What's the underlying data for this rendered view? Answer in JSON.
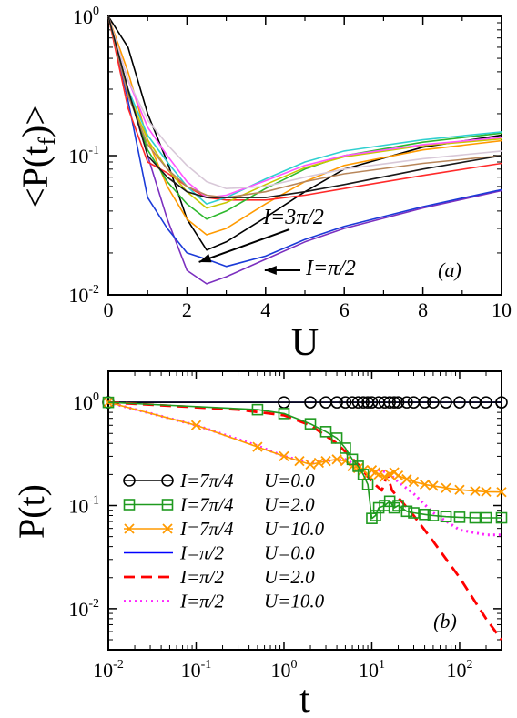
{
  "chart_data": [
    {
      "panel": "(a)",
      "type": "line",
      "ylabel_main": "<P(t",
      "ylabel_sub": "f",
      "ylabel_end": ")>",
      "xlabel": "U",
      "yscale": "log",
      "xlim": [
        0,
        10
      ],
      "ylim": [
        0.01,
        1
      ],
      "xticks": [
        "0",
        "2",
        "4",
        "6",
        "8",
        "10"
      ],
      "yticks": [
        {
          "base": "10",
          "exp": "-2",
          "value": 0.01
        },
        {
          "base": "10",
          "exp": "-1",
          "value": 0.1
        },
        {
          "base": "10",
          "exp": "0",
          "value": 1
        }
      ],
      "annotations": [
        {
          "text": "I=3π/2",
          "points_to": [
            3.0,
            0.018
          ]
        },
        {
          "text": "I=π/2",
          "points_to": [
            3.7,
            0.0145
          ]
        }
      ],
      "series": [
        {
          "color": "#7b2fbf",
          "x": [
            0,
            0.5,
            1,
            1.5,
            2,
            2.5,
            3,
            4,
            5,
            6,
            8,
            10
          ],
          "y": [
            1,
            0.3,
            0.1,
            0.035,
            0.015,
            0.012,
            0.0135,
            0.018,
            0.024,
            0.03,
            0.042,
            0.056
          ]
        },
        {
          "color": "#1a3ad8",
          "x": [
            0,
            0.5,
            1,
            1.5,
            2,
            2.5,
            3,
            4,
            5,
            6,
            8,
            10
          ],
          "y": [
            1,
            0.25,
            0.05,
            0.03,
            0.02,
            0.018,
            0.016,
            0.019,
            0.025,
            0.031,
            0.043,
            0.057
          ]
        },
        {
          "color": "#000000",
          "x": [
            0,
            0.5,
            1,
            1.5,
            2,
            2.5,
            3,
            4,
            5,
            6,
            8,
            10
          ],
          "y": [
            1,
            0.6,
            0.2,
            0.09,
            0.035,
            0.021,
            0.024,
            0.036,
            0.055,
            0.08,
            0.115,
            0.14
          ]
        },
        {
          "color": "#ff9a00",
          "x": [
            0,
            0.5,
            1,
            1.5,
            2,
            2.5,
            3,
            4,
            5,
            6,
            8,
            10
          ],
          "y": [
            1,
            0.4,
            0.13,
            0.06,
            0.035,
            0.027,
            0.03,
            0.045,
            0.065,
            0.085,
            0.11,
            0.128
          ]
        },
        {
          "color": "#ff2a2a",
          "x": [
            0,
            0.5,
            1,
            1.5,
            2,
            2.5,
            3,
            4,
            5,
            6,
            8,
            10
          ],
          "y": [
            1,
            0.22,
            0.09,
            0.075,
            0.06,
            0.05,
            0.048,
            0.048,
            0.052,
            0.058,
            0.072,
            0.088
          ]
        },
        {
          "color": "#2db82d",
          "x": [
            0,
            0.5,
            1,
            1.5,
            2,
            2.5,
            3,
            4,
            5,
            6,
            8,
            10
          ],
          "y": [
            1,
            0.3,
            0.11,
            0.065,
            0.045,
            0.035,
            0.04,
            0.058,
            0.08,
            0.1,
            0.125,
            0.145
          ]
        },
        {
          "color": "#30d0d0",
          "x": [
            0,
            0.5,
            1,
            1.5,
            2,
            2.5,
            3,
            4,
            5,
            6,
            8,
            10
          ],
          "y": [
            1,
            0.3,
            0.14,
            0.09,
            0.06,
            0.045,
            0.05,
            0.068,
            0.09,
            0.108,
            0.13,
            0.148
          ]
        },
        {
          "color": "#c8c800",
          "x": [
            0,
            0.5,
            1,
            1.5,
            2,
            2.5,
            3,
            4,
            5,
            6,
            8,
            10
          ],
          "y": [
            1,
            0.28,
            0.13,
            0.08,
            0.055,
            0.042,
            0.046,
            0.062,
            0.082,
            0.098,
            0.118,
            0.132
          ]
        },
        {
          "color": "#ff55ff",
          "x": [
            0,
            0.5,
            1,
            1.5,
            2,
            2.5,
            3,
            4,
            5,
            6,
            8,
            10
          ],
          "y": [
            1,
            0.35,
            0.16,
            0.1,
            0.065,
            0.05,
            0.052,
            0.066,
            0.085,
            0.1,
            0.12,
            0.135
          ]
        },
        {
          "color": "#b8865a",
          "x": [
            0,
            0.5,
            1,
            1.5,
            2,
            2.5,
            3,
            4,
            5,
            6,
            8,
            10
          ],
          "y": [
            1,
            0.27,
            0.12,
            0.08,
            0.06,
            0.052,
            0.05,
            0.055,
            0.065,
            0.074,
            0.088,
            0.1
          ]
        },
        {
          "color": "#d8c8d8",
          "x": [
            0,
            0.5,
            1,
            1.5,
            2,
            2.5,
            3,
            4,
            5,
            6,
            8,
            10
          ],
          "y": [
            1,
            0.35,
            0.18,
            0.12,
            0.085,
            0.065,
            0.058,
            0.06,
            0.07,
            0.08,
            0.095,
            0.108
          ]
        },
        {
          "color": "#1a1a1a",
          "x": [
            0,
            0.5,
            1,
            1.5,
            2,
            2.5,
            3,
            4,
            5,
            6,
            8,
            10
          ],
          "y": [
            1,
            0.3,
            0.1,
            0.07,
            0.055,
            0.05,
            0.05,
            0.05,
            0.055,
            0.062,
            0.08,
            0.1
          ]
        }
      ]
    },
    {
      "panel": "(b)",
      "type": "line",
      "xlabel": "t",
      "ylabel": "P(t)",
      "xscale": "log",
      "yscale": "log",
      "xlim": [
        0.01,
        300
      ],
      "ylim": [
        0.004,
        2
      ],
      "xticks": [
        {
          "base": "10",
          "exp": "-2",
          "value": 0.01
        },
        {
          "base": "10",
          "exp": "-1",
          "value": 0.1
        },
        {
          "base": "10",
          "exp": "0",
          "value": 1
        },
        {
          "base": "10",
          "exp": "1",
          "value": 10
        },
        {
          "base": "10",
          "exp": "2",
          "value": 100
        }
      ],
      "yticks": [
        {
          "base": "10",
          "exp": "-2",
          "value": 0.01
        },
        {
          "base": "10",
          "exp": "-1",
          "value": 0.1
        },
        {
          "base": "10",
          "exp": "0",
          "value": 1
        }
      ],
      "series": [
        {
          "name": "I=7π/4",
          "u": "U=0.0",
          "color": "#000000",
          "style": "solid",
          "marker": "circle",
          "x": [
            0.01,
            1,
            2,
            3,
            4,
            5,
            6,
            7,
            8,
            9,
            10,
            12,
            14,
            16,
            18,
            20,
            25,
            30,
            40,
            50,
            70,
            100,
            150,
            200,
            300
          ],
          "y": [
            1,
            1,
            1,
            1,
            1,
            1,
            1,
            1,
            1,
            1,
            1,
            1,
            1,
            1,
            1,
            1,
            1,
            1,
            1,
            1,
            1,
            1,
            1,
            1,
            1
          ]
        },
        {
          "name": "I=7π/4",
          "u": "U=2.0",
          "color": "#1f9a1f",
          "style": "solid",
          "marker": "square",
          "x": [
            0.01,
            0.5,
            1,
            2,
            3,
            4,
            5,
            6,
            7,
            8,
            9,
            10,
            11,
            12,
            14,
            16,
            18,
            20,
            25,
            30,
            40,
            50,
            70,
            100,
            150,
            200,
            300
          ],
          "y": [
            1,
            0.85,
            0.78,
            0.62,
            0.52,
            0.45,
            0.36,
            0.28,
            0.24,
            0.2,
            0.16,
            0.075,
            0.08,
            0.095,
            0.1,
            0.11,
            0.095,
            0.1,
            0.088,
            0.085,
            0.082,
            0.08,
            0.078,
            0.077,
            0.076,
            0.076,
            0.076
          ]
        },
        {
          "name": "I=7π/4",
          "u": "U=10.0",
          "color": "#ff9a00",
          "style": "solid",
          "marker": "x",
          "x": [
            0.01,
            0.1,
            0.5,
            1,
            1.5,
            2,
            2.5,
            3,
            4,
            5,
            6,
            7,
            8,
            9,
            10,
            11,
            12,
            14,
            16,
            18,
            20,
            25,
            30,
            40,
            50,
            70,
            100,
            150,
            200,
            300
          ],
          "y": [
            1,
            0.6,
            0.37,
            0.3,
            0.27,
            0.25,
            0.26,
            0.27,
            0.28,
            0.27,
            0.24,
            0.23,
            0.22,
            0.2,
            0.22,
            0.21,
            0.2,
            0.19,
            0.2,
            0.21,
            0.195,
            0.18,
            0.17,
            0.16,
            0.155,
            0.148,
            0.142,
            0.138,
            0.136,
            0.135
          ]
        },
        {
          "name": "I=π/2",
          "u": "U=0.0",
          "color": "#0000ff",
          "style": "solid",
          "marker": "none",
          "x": [
            0.01,
            300
          ],
          "y": [
            1,
            1
          ]
        },
        {
          "name": "I=π/2",
          "u": "U=2.0",
          "color": "#ff0000",
          "style": "dashed",
          "marker": "none",
          "x": [
            0.01,
            0.3,
            1,
            2,
            4,
            7,
            10,
            13,
            15,
            17,
            20,
            30,
            50,
            100,
            200,
            300
          ],
          "y": [
            1,
            0.85,
            0.75,
            0.6,
            0.4,
            0.25,
            0.17,
            0.14,
            0.2,
            0.14,
            0.12,
            0.08,
            0.045,
            0.02,
            0.008,
            0.005
          ]
        },
        {
          "name": "I=π/2",
          "u": "U=10.0",
          "color": "#ff22ff",
          "style": "dotted",
          "marker": "none",
          "x": [
            0.01,
            0.1,
            0.5,
            1,
            2,
            3,
            5,
            7,
            10,
            12,
            15,
            20,
            30,
            50,
            100,
            200,
            300
          ],
          "y": [
            1,
            0.6,
            0.38,
            0.3,
            0.26,
            0.27,
            0.28,
            0.24,
            0.2,
            0.22,
            0.21,
            0.17,
            0.13,
            0.085,
            0.058,
            0.052,
            0.052
          ]
        }
      ]
    }
  ]
}
